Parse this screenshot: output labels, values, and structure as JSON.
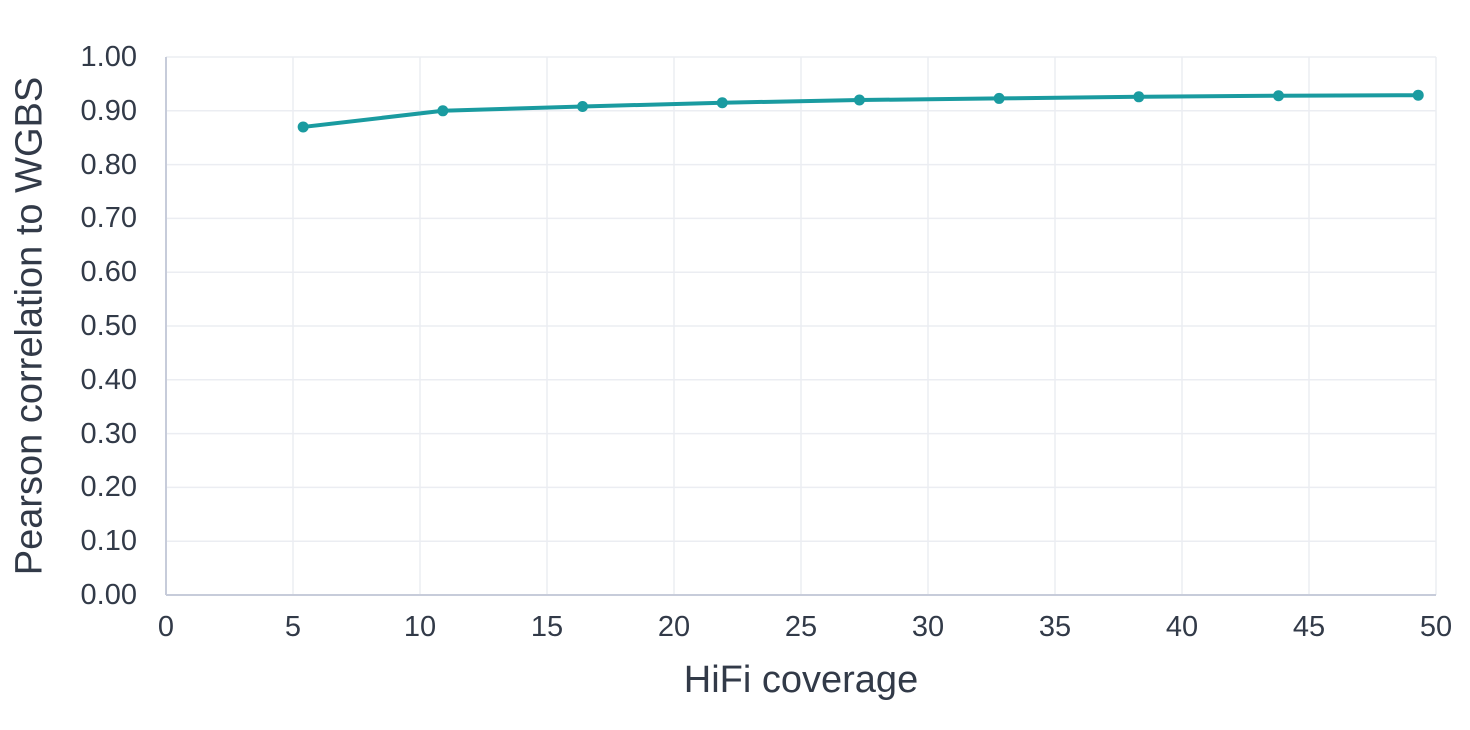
{
  "chart_data": {
    "type": "line",
    "title": "",
    "xlabel": "HiFi coverage",
    "ylabel": "Pearson correlation to WGBS",
    "x": [
      5.4,
      10.9,
      16.4,
      21.9,
      27.3,
      32.8,
      38.3,
      43.8,
      49.3
    ],
    "y": [
      0.87,
      0.9,
      0.908,
      0.915,
      0.92,
      0.923,
      0.926,
      0.928,
      0.929
    ],
    "xlim": [
      0,
      50
    ],
    "ylim": [
      0.0,
      1.0
    ],
    "xtick_values": [
      0,
      5,
      10,
      15,
      20,
      25,
      30,
      35,
      40,
      45,
      50
    ],
    "xtick_labels": [
      "0",
      "5",
      "10",
      "15",
      "20",
      "25",
      "30",
      "35",
      "40",
      "45",
      "50"
    ],
    "ytick_values": [
      0.0,
      0.1,
      0.2,
      0.3,
      0.4,
      0.5,
      0.6,
      0.7,
      0.8,
      0.9,
      1.0
    ],
    "ytick_labels": [
      "0.00",
      "0.10",
      "0.20",
      "0.30",
      "0.40",
      "0.50",
      "0.60",
      "0.70",
      "0.80",
      "0.90",
      "1.00"
    ],
    "grid": true,
    "legend": false,
    "marker": "circle",
    "colors": {
      "line": "#1a9ba0",
      "marker": "#1a9ba0",
      "grid": "#ebedf2",
      "axis_line": "#c7ccda",
      "text": "#323a48",
      "background": "#ffffff"
    }
  }
}
